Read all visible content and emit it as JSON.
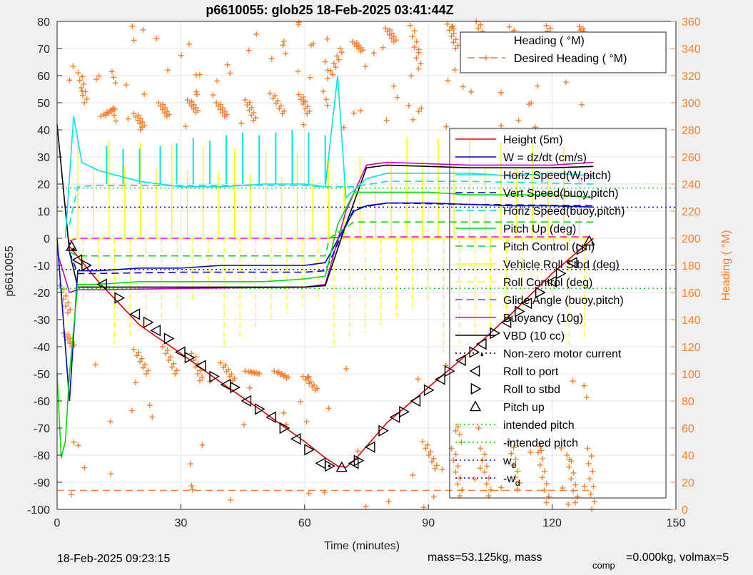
{
  "figure": {
    "title": "p6610055: glob25 18-Feb-2025 03:41:44Z",
    "footer_left": "18-Feb-2025 09:23:15",
    "footer_right_a": "mass=53.125kg, mass",
    "footer_right_sub": "comp",
    "footer_right_b": "=0.000kg, volmax=5"
  },
  "chart_data": {
    "type": "line",
    "title": "p6610055: glob25 18-Feb-2025 03:41:44Z",
    "xlabel": "Time (minutes)",
    "ylabel": "p6610055",
    "y2label": "Heading (  °M)",
    "xlim": [
      0,
      150
    ],
    "ylim": [
      -100,
      80
    ],
    "y2lim": [
      0,
      360
    ],
    "xticks": [
      0,
      30,
      60,
      90,
      120,
      150
    ],
    "yticks": [
      -100,
      -90,
      -80,
      -70,
      -60,
      -50,
      -40,
      -30,
      -20,
      -10,
      0,
      10,
      20,
      30,
      40,
      50,
      60,
      70,
      80
    ],
    "y2ticks": [
      0,
      20,
      40,
      60,
      80,
      100,
      120,
      140,
      160,
      180,
      200,
      220,
      240,
      260,
      280,
      300,
      320,
      340,
      360
    ],
    "grid": true,
    "legend_heading": [
      {
        "label": "Heading (  °M)",
        "color": "#ffffff",
        "style": "solid"
      },
      {
        "label": "Desired Heading (    °M)",
        "color": "#ff7f2a",
        "style": "dash-star"
      }
    ],
    "legend_main": [
      {
        "label": "Height (5m)",
        "color": "#e00000",
        "style": "solid"
      },
      {
        "label": "W = dz/dt (cm/s)",
        "color": "#0000cc",
        "style": "solid"
      },
      {
        "label": "Horiz Speed(W,pitch)",
        "color": "#00e5e5",
        "style": "solid"
      },
      {
        "label": "Vert Speed(buoy,pitch)",
        "color": "#0000cc",
        "style": "dash"
      },
      {
        "label": "Horiz Speed(buoy,pitch)",
        "color": "#00e5e5",
        "style": "dash"
      },
      {
        "label": "Pitch Up (deg)",
        "color": "#00dd00",
        "style": "solid"
      },
      {
        "label": "Pitch Control (cm)",
        "color": "#00dd00",
        "style": "dash"
      },
      {
        "label": "Vehicle Roll Stbd (deg)",
        "color": "#ffff00",
        "style": "solid"
      },
      {
        "label": "Roll Control (deg)",
        "color": "#ffff00",
        "style": "dash"
      },
      {
        "label": "Glide Angle (buoy,pitch)",
        "color": "#ff00ff",
        "style": "dash"
      },
      {
        "label": "Buoyancy (10g)",
        "color": "#cc00cc",
        "style": "solid"
      },
      {
        "label": "VBD (10 cc)",
        "color": "#000000",
        "style": "solid"
      },
      {
        "label": "Non-zero motor current",
        "color": "#000000",
        "style": "dot"
      },
      {
        "label": "Roll to port",
        "color": "#000000",
        "style": "tri-left"
      },
      {
        "label": "Roll to stbd",
        "color": "#000000",
        "style": "tri-right"
      },
      {
        "label": "Pitch up",
        "color": "#000000",
        "style": "tri-up"
      },
      {
        "label": "intended pitch",
        "color": "#00dd00",
        "style": "dot"
      },
      {
        "label": "-intended pitch",
        "color": "#00dd00",
        "style": "dot"
      },
      {
        "label": "w",
        "sub": "d",
        "color": "#0000ff",
        "style": "dot"
      },
      {
        "label": "-w",
        "sub": "d",
        "color": "#0000ff",
        "style": "dot"
      }
    ],
    "series": [
      {
        "name": "Height (5m)",
        "color": "#e00000",
        "x": [
          3,
          10,
          20,
          30,
          40,
          50,
          60,
          65,
          68,
          70,
          72,
          80,
          90,
          100,
          110,
          120,
          130
        ],
        "y": [
          -3,
          -16,
          -32,
          -42.5,
          -53.5,
          -64,
          -75,
          -81,
          -84,
          -84.5,
          -82,
          -68,
          -55,
          -42,
          -28,
          -13,
          0
        ]
      },
      {
        "name": "Buoyancy (10g)",
        "color": "#cc00cc",
        "x": [
          0,
          3,
          5,
          10,
          30,
          60,
          65,
          70,
          75,
          80,
          100,
          120,
          130
        ],
        "y": [
          -5,
          -20,
          -19,
          -19,
          -18.5,
          -18,
          -17,
          10,
          27,
          28,
          27,
          27,
          28
        ]
      },
      {
        "name": "VBD (10 cc)",
        "color": "#000000",
        "x": [
          0,
          3,
          5,
          10,
          30,
          60,
          65,
          70,
          75,
          80,
          100,
          120,
          130
        ],
        "y": [
          42,
          -5,
          -18,
          -18,
          -18,
          -18,
          -17.5,
          5,
          26,
          27,
          26,
          26,
          26.5
        ]
      },
      {
        "name": "W = dz/dt (cm/s)",
        "color": "#0000cc",
        "x": [
          0,
          3,
          5,
          10,
          20,
          30,
          40,
          50,
          60,
          65,
          70,
          72,
          75,
          80,
          90,
          100,
          110,
          120,
          130
        ],
        "y": [
          0,
          -60,
          -12,
          -12,
          -11,
          -11,
          -10,
          -10,
          -10,
          -9,
          5,
          10,
          12,
          13,
          13,
          12.5,
          12,
          12,
          11.5
        ]
      },
      {
        "name": "Vert Speed(buoy,pitch)",
        "color": "#0000cc",
        "x": [
          3,
          5,
          10,
          30,
          60,
          65,
          72,
          80,
          100,
          130
        ],
        "y": [
          -5,
          -13,
          -13,
          -12.5,
          -12.5,
          -12,
          11,
          13,
          12.5,
          12
        ]
      },
      {
        "name": "Horiz Speed(W,pitch)",
        "color": "#00e5e5",
        "x": [
          2,
          4,
          6,
          10,
          20,
          30,
          40,
          50,
          60,
          65,
          68,
          70,
          75,
          80,
          90,
          100,
          110,
          120,
          130
        ],
        "y": [
          0,
          45,
          28,
          25,
          21,
          19,
          19,
          20,
          20,
          19,
          60,
          15,
          22,
          24,
          24,
          24,
          23,
          24,
          23
        ]
      },
      {
        "name": "Horiz Speed(buoy,pitch)",
        "color": "#00e5e5",
        "x": [
          3,
          5,
          10,
          30,
          60,
          65,
          72,
          80,
          100,
          130
        ],
        "y": [
          5,
          19,
          19.5,
          19.5,
          19.5,
          19,
          19,
          21,
          21,
          20
        ]
      },
      {
        "name": "Pitch Up (deg)",
        "color": "#00dd00",
        "x": [
          0,
          1,
          2,
          3,
          5,
          10,
          20,
          30,
          40,
          50,
          60,
          65,
          68,
          72,
          80,
          90,
          100,
          110,
          120,
          130
        ],
        "y": [
          -50,
          -81,
          -75,
          -50,
          -17,
          -17,
          -16,
          -16,
          -16,
          -16,
          -15,
          -14,
          5,
          17,
          17,
          17,
          16,
          16,
          16,
          15
        ]
      },
      {
        "name": "Pitch Control (cm)",
        "color": "#00dd00",
        "x": [
          3,
          5,
          65,
          66,
          72,
          130
        ],
        "y": [
          -5,
          -6.5,
          -6.5,
          0,
          6,
          6
        ]
      },
      {
        "name": "Glide Angle (buoy,pitch)",
        "color": "#ff00ff",
        "x": [
          3,
          5,
          60,
          65,
          70,
          130
        ],
        "y": [
          -1,
          0,
          0,
          0,
          0.5,
          0.5
        ]
      }
    ],
    "roll_spikes": [
      {
        "x": 8,
        "y": 20
      },
      {
        "x": 12,
        "y": 34
      },
      {
        "x": 16,
        "y": 33
      },
      {
        "x": 20,
        "y": 33
      },
      {
        "x": 25,
        "y": 34
      },
      {
        "x": 29,
        "y": 35
      },
      {
        "x": 33,
        "y": 37
      },
      {
        "x": 37,
        "y": 36
      },
      {
        "x": 41,
        "y": 38
      },
      {
        "x": 45,
        "y": 39
      },
      {
        "x": 49,
        "y": 38
      },
      {
        "x": 53,
        "y": 39
      },
      {
        "x": 57,
        "y": 40
      },
      {
        "x": 61,
        "y": 39
      },
      {
        "x": 65,
        "y": 38
      }
    ],
    "reference_lines": [
      {
        "name": "intended pitch",
        "y": 18.5,
        "color": "#00dd00"
      },
      {
        "name": "-intended pitch",
        "y": -18.5,
        "color": "#00dd00"
      },
      {
        "name": "w_d",
        "y": 11.5,
        "color": "#0000ff"
      },
      {
        "name": "-w_d",
        "y": -11.5,
        "color": "#0000ff"
      }
    ],
    "desired_heading": {
      "x": [
        0,
        130
      ],
      "y2": [
        14,
        14
      ],
      "color": "#ff7f2a"
    },
    "heading_clusters": [
      {
        "x0": 5.5,
        "y0": 322,
        "x1": 7,
        "y1": 300
      },
      {
        "x0": 11,
        "y0": 290,
        "x1": 14,
        "y1": 296
      },
      {
        "x0": 19,
        "y0": 292,
        "x1": 21,
        "y1": 282
      },
      {
        "x0": 25,
        "y0": 300,
        "x1": 27,
        "y1": 290
      },
      {
        "x0": 32,
        "y0": 302,
        "x1": 34,
        "y1": 293
      },
      {
        "x0": 39,
        "y0": 300,
        "x1": 41,
        "y1": 290
      },
      {
        "x0": 46,
        "y0": 302,
        "x1": 48,
        "y1": 287
      },
      {
        "x0": 52,
        "y0": 307,
        "x1": 55,
        "y1": 292
      },
      {
        "x0": 59,
        "y0": 306,
        "x1": 61,
        "y1": 292
      },
      {
        "x0": 66,
        "y0": 318,
        "x1": 69,
        "y1": 340
      },
      {
        "x0": 72,
        "y0": 345,
        "x1": 74,
        "y1": 338
      },
      {
        "x0": 80,
        "y0": 355,
        "x1": 82,
        "y1": 345
      },
      {
        "x0": 86,
        "y0": 357,
        "x1": 88,
        "y1": 325
      },
      {
        "x0": 95,
        "y0": 358,
        "x1": 97,
        "y1": 340
      },
      {
        "x0": 102,
        "y0": 360,
        "x1": 104,
        "y1": 340
      },
      {
        "x0": 110,
        "y0": 356,
        "x1": 113,
        "y1": 335
      },
      {
        "x0": 119,
        "y0": 357,
        "x1": 120,
        "y1": 340
      },
      {
        "x0": 127,
        "y0": 356,
        "x1": 128,
        "y1": 346
      },
      {
        "x0": 19,
        "y0": 118,
        "x1": 22,
        "y1": 100
      },
      {
        "x0": 26,
        "y0": 120,
        "x1": 29,
        "y1": 100
      },
      {
        "x0": 33,
        "y0": 115,
        "x1": 35,
        "y1": 95
      },
      {
        "x0": 40,
        "y0": 108,
        "x1": 43,
        "y1": 95
      },
      {
        "x0": 46,
        "y0": 102,
        "x1": 49,
        "y1": 100
      },
      {
        "x0": 53,
        "y0": 102,
        "x1": 56,
        "y1": 97
      },
      {
        "x0": 60,
        "y0": 98,
        "x1": 63,
        "y1": 88
      },
      {
        "x0": 89,
        "y0": 50,
        "x1": 92,
        "y1": 30
      },
      {
        "x0": 96,
        "y0": 45,
        "x1": 98,
        "y1": 10
      },
      {
        "x0": 103,
        "y0": 45,
        "x1": 105,
        "y1": 10
      },
      {
        "x0": 110,
        "y0": 50,
        "x1": 112,
        "y1": 15
      },
      {
        "x0": 117,
        "y0": 42,
        "x1": 119,
        "y1": 5
      },
      {
        "x0": 124,
        "y0": 40,
        "x1": 126,
        "y1": 5
      },
      {
        "x0": 129,
        "y0": 45,
        "x1": 130,
        "y1": 0
      },
      {
        "x0": 1,
        "y0": 165,
        "x1": 3,
        "y1": 145
      },
      {
        "x0": 2,
        "y0": 130,
        "x1": 4,
        "y1": 120
      }
    ],
    "markers": [
      {
        "x": 3.5,
        "y": -3,
        "type": "tri-up"
      },
      {
        "x": 5,
        "y": -8,
        "type": "tri-left"
      },
      {
        "x": 7,
        "y": -10,
        "type": "tri-right"
      },
      {
        "x": 11,
        "y": -17,
        "type": "tri-left"
      },
      {
        "x": 15,
        "y": -22,
        "type": "tri-right"
      },
      {
        "x": 19,
        "y": -28,
        "type": "tri-left"
      },
      {
        "x": 22,
        "y": -31,
        "type": "tri-right"
      },
      {
        "x": 24,
        "y": -34,
        "type": "tri-left"
      },
      {
        "x": 27,
        "y": -37,
        "type": "tri-right"
      },
      {
        "x": 30,
        "y": -42,
        "type": "tri-left"
      },
      {
        "x": 32,
        "y": -44,
        "type": "tri-right"
      },
      {
        "x": 35,
        "y": -47,
        "type": "tri-left"
      },
      {
        "x": 38,
        "y": -51,
        "type": "tri-right"
      },
      {
        "x": 41,
        "y": -54,
        "type": "tri-left"
      },
      {
        "x": 43,
        "y": -55,
        "type": "tri-right"
      },
      {
        "x": 46,
        "y": -60,
        "type": "tri-left"
      },
      {
        "x": 49,
        "y": -63,
        "type": "tri-right"
      },
      {
        "x": 52,
        "y": -66,
        "type": "tri-left"
      },
      {
        "x": 55,
        "y": -70,
        "type": "tri-right"
      },
      {
        "x": 58,
        "y": -74,
        "type": "tri-left"
      },
      {
        "x": 61,
        "y": -78,
        "type": "tri-right"
      },
      {
        "x": 64,
        "y": -83,
        "type": "tri-left"
      },
      {
        "x": 66,
        "y": -84,
        "type": "tri-right"
      },
      {
        "x": 69,
        "y": -84.5,
        "type": "tri-up"
      },
      {
        "x": 72,
        "y": -83,
        "type": "tri-left"
      },
      {
        "x": 73,
        "y": -82,
        "type": "tri-right"
      },
      {
        "x": 76,
        "y": -77,
        "type": "tri-left"
      },
      {
        "x": 79,
        "y": -71,
        "type": "tri-right"
      },
      {
        "x": 82,
        "y": -66,
        "type": "tri-left"
      },
      {
        "x": 84,
        "y": -64,
        "type": "tri-right"
      },
      {
        "x": 87,
        "y": -60,
        "type": "tri-left"
      },
      {
        "x": 90,
        "y": -56,
        "type": "tri-right"
      },
      {
        "x": 93,
        "y": -52,
        "type": "tri-left"
      },
      {
        "x": 95,
        "y": -49,
        "type": "tri-right"
      },
      {
        "x": 98,
        "y": -45,
        "type": "tri-left"
      },
      {
        "x": 101,
        "y": -42,
        "type": "tri-right"
      },
      {
        "x": 103,
        "y": -39,
        "type": "tri-left"
      },
      {
        "x": 106,
        "y": -35,
        "type": "tri-right"
      },
      {
        "x": 109,
        "y": -31,
        "type": "tri-left"
      },
      {
        "x": 112,
        "y": -27,
        "type": "tri-right"
      },
      {
        "x": 114,
        "y": -24,
        "type": "tri-left"
      },
      {
        "x": 117,
        "y": -20,
        "type": "tri-right"
      },
      {
        "x": 120,
        "y": -16,
        "type": "tri-left"
      },
      {
        "x": 122,
        "y": -13,
        "type": "tri-right"
      },
      {
        "x": 125,
        "y": -9,
        "type": "tri-left"
      },
      {
        "x": 127,
        "y": -4,
        "type": "tri-right"
      },
      {
        "x": 129,
        "y": -1,
        "type": "tri-up"
      }
    ],
    "motor_dots": [
      {
        "x": 3,
        "y": -2
      },
      {
        "x": 4,
        "y": -4
      },
      {
        "x": 103,
        "y": -43
      },
      {
        "x": 66,
        "y": -84
      }
    ]
  }
}
